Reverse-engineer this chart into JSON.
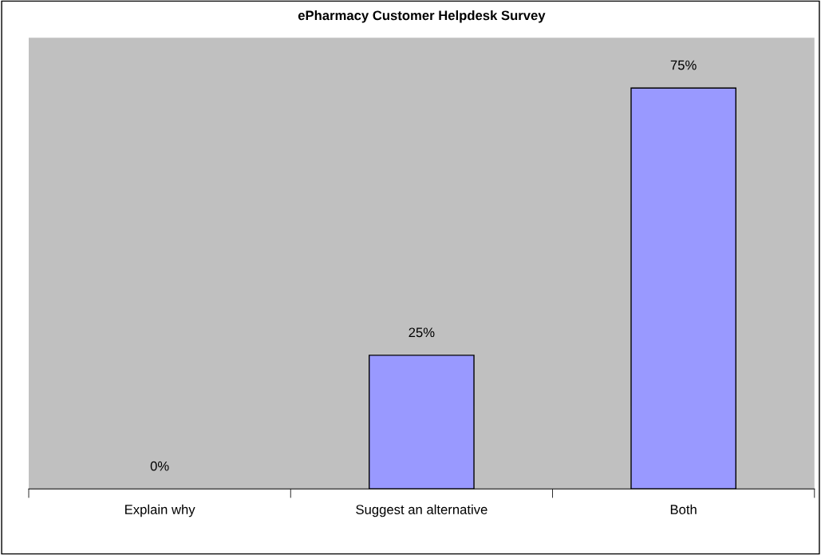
{
  "chart_data": {
    "type": "bar",
    "title": "ePharmacy Customer Helpdesk Survey",
    "categories": [
      "Explain why",
      "Suggest an alternative",
      "Both"
    ],
    "values": [
      0,
      25,
      75
    ],
    "value_labels": [
      "0%",
      "25%",
      "75%"
    ],
    "color": "#9999ff",
    "ylim": [
      0,
      84.4
    ],
    "tick_labels": "x",
    "grid": false,
    "legend": false
  }
}
